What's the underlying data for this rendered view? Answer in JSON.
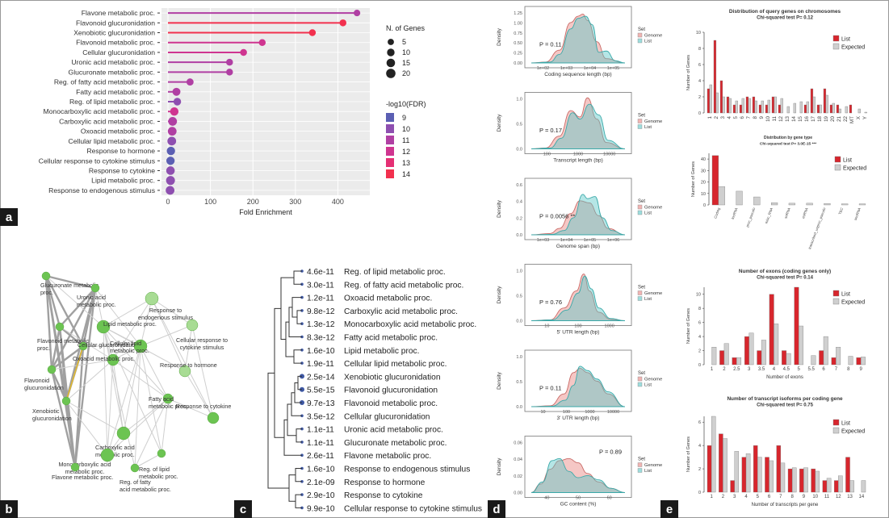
{
  "panel_labels": {
    "a": "a",
    "b": "b",
    "c": "c",
    "d": "d",
    "e": "e"
  },
  "chart_data": [
    {
      "id": "lollipop",
      "type": "scatter",
      "xlabel": "Fold Enrichment",
      "xlim": [
        0,
        460
      ],
      "xticks": [
        0,
        100,
        200,
        300,
        400
      ],
      "legend_size_title": "N. of Genes",
      "legend_sizes": [
        "5",
        "10",
        "15",
        "20"
      ],
      "legend_color_title": "-log10(FDR)",
      "legend_colors": [
        {
          "label": "9",
          "color": "#5b5fb3"
        },
        {
          "label": "10",
          "color": "#8e4fb0"
        },
        {
          "label": "11",
          "color": "#b03fa3"
        },
        {
          "label": "12",
          "color": "#cf3590"
        },
        {
          "label": "13",
          "color": "#e52f74"
        },
        {
          "label": "14",
          "color": "#f2304e"
        }
      ],
      "pathways": [
        {
          "name": "Flavone metabolic proc.",
          "x": 445,
          "genes": 6,
          "fdr": 10.6
        },
        {
          "name": "Flavonoid glucuronidation",
          "x": 412,
          "genes": 7,
          "fdr": 14.3
        },
        {
          "name": "Xenobiotic glucuronidation",
          "x": 340,
          "genes": 7,
          "fdr": 13.6
        },
        {
          "name": "Flavonoid metabolic proc.",
          "x": 222,
          "genes": 7,
          "fdr": 12.0
        },
        {
          "name": "Cellular glucuronidation",
          "x": 178,
          "genes": 7,
          "fdr": 11.5
        },
        {
          "name": "Uronic acid metabolic proc.",
          "x": 145,
          "genes": 7,
          "fdr": 11.0
        },
        {
          "name": "Glucuronate metabolic proc.",
          "x": 145,
          "genes": 7,
          "fdr": 11.0
        },
        {
          "name": "Reg. of fatty acid metabolic proc.",
          "x": 52,
          "genes": 8,
          "fdr": 10.5
        },
        {
          "name": "Fatty acid metabolic proc.",
          "x": 20,
          "genes": 12,
          "fdr": 11.1
        },
        {
          "name": "Reg. of lipid metabolic proc.",
          "x": 22,
          "genes": 10,
          "fdr": 10.4
        },
        {
          "name": "Monocarboxylic acid metabolic proc.",
          "x": 15,
          "genes": 14,
          "fdr": 11.9
        },
        {
          "name": "Carboxylic acid metabolic proc.",
          "x": 11,
          "genes": 16,
          "fdr": 11.0
        },
        {
          "name": "Oxoacid metabolic proc.",
          "x": 10,
          "genes": 16,
          "fdr": 10.9
        },
        {
          "name": "Cellular lipid metabolic proc.",
          "x": 9,
          "genes": 16,
          "fdr": 9.7
        },
        {
          "name": "Response to hormone",
          "x": 7,
          "genes": 14,
          "fdr": 8.7
        },
        {
          "name": "Cellular response to cytokine stimulus",
          "x": 6,
          "genes": 14,
          "fdr": 9.0
        },
        {
          "name": "Response to cytokine",
          "x": 6,
          "genes": 15,
          "fdr": 9.5
        },
        {
          "name": "Lipid metabolic proc.",
          "x": 6,
          "genes": 17,
          "fdr": 9.8
        },
        {
          "name": "Response to endogenous stimulus",
          "x": 5,
          "genes": 16,
          "fdr": 9.8
        }
      ]
    },
    {
      "id": "network",
      "type": "diagram",
      "nodes": [
        {
          "name": "Glucuronate metabolic proc.",
          "size": 5
        },
        {
          "name": "Uronic acid metabolic proc.",
          "size": 5
        },
        {
          "name": "Response to endogenous stimulus",
          "size": 8
        },
        {
          "name": "Flavonoid metabolic proc.",
          "size": 5
        },
        {
          "name": "Lipid metabolic proc.",
          "size": 8
        },
        {
          "name": "Cellular response to cytokine stimulus",
          "size": 7
        },
        {
          "name": "Cellular glucuronidation",
          "size": 5
        },
        {
          "name": "Cellular lipid metabolic proc.",
          "size": 8
        },
        {
          "name": "Flavonoid glucuronidation",
          "size": 5
        },
        {
          "name": "Oxoacid metabolic proc.",
          "size": 7
        },
        {
          "name": "Response to hormone",
          "size": 7
        },
        {
          "name": "Response to cytokine",
          "size": 7
        },
        {
          "name": "Xenobiotic glucuronidation",
          "size": 5
        },
        {
          "name": "Fatty acid metabolic proc.",
          "size": 6
        },
        {
          "name": "Carboxylic acid metabolic proc.",
          "size": 8
        },
        {
          "name": "Monocarboxylic acid metabolic proc.",
          "size": 8
        },
        {
          "name": "Reg. of lipid metabolic proc.",
          "size": 5
        },
        {
          "name": "Flavone metabolic proc.",
          "size": 5
        },
        {
          "name": "Reg. of fatty acid metabolic proc.",
          "size": 5
        }
      ]
    },
    {
      "id": "dendrogram",
      "type": "table",
      "rows": [
        {
          "fdr": "4.6e-11",
          "name": "Reg. of lipid metabolic proc."
        },
        {
          "fdr": "3.0e-11",
          "name": "Reg. of fatty acid metabolic proc."
        },
        {
          "fdr": "1.2e-11",
          "name": "Oxoacid metabolic proc."
        },
        {
          "fdr": "9.8e-12",
          "name": "Carboxylic acid metabolic proc."
        },
        {
          "fdr": "1.3e-12",
          "name": "Monocarboxylic acid metabolic proc."
        },
        {
          "fdr": "8.3e-12",
          "name": "Fatty acid metabolic proc."
        },
        {
          "fdr": "1.6e-10",
          "name": "Lipid metabolic proc."
        },
        {
          "fdr": "1.9e-11",
          "name": "Cellular lipid metabolic proc."
        },
        {
          "fdr": "2.5e-14",
          "name": "Xenobiotic glucuronidation"
        },
        {
          "fdr": "5.5e-15",
          "name": "Flavonoid glucuronidation"
        },
        {
          "fdr": "9.7e-13",
          "name": "Flavonoid metabolic proc."
        },
        {
          "fdr": "3.5e-12",
          "name": "Cellular glucuronidation"
        },
        {
          "fdr": "1.1e-11",
          "name": "Uronic acid metabolic proc."
        },
        {
          "fdr": "1.1e-11",
          "name": "Glucuronate metabolic proc."
        },
        {
          "fdr": "2.6e-11",
          "name": "Flavone metabolic proc."
        },
        {
          "fdr": "1.6e-10",
          "name": "Response to endogenous stimulus"
        },
        {
          "fdr": "2.1e-09",
          "name": "Response to hormone"
        },
        {
          "fdr": "2.9e-10",
          "name": "Response to cytokine"
        },
        {
          "fdr": "9.9e-10",
          "name": "Cellular response to cytokine stimulus"
        }
      ]
    },
    {
      "id": "density",
      "type": "area",
      "ylabel": "Density",
      "legend_title": "Set",
      "legend": [
        "Genome",
        "List"
      ],
      "colors": {
        "Genome": "#e8827f",
        "List": "#5cc7c7"
      },
      "plots": [
        {
          "xlabel": "Coding sequence length (bp)",
          "pvalue": "P = 0.11",
          "yticks": [
            "1.25",
            "1.00",
            "0.75",
            "0.50",
            "0.25",
            "0.00"
          ],
          "xticks": [
            "1e+02",
            "1e+03",
            "1e+04",
            "1e+05"
          ]
        },
        {
          "xlabel": "Transcript length (bp)",
          "pvalue": "P = 0.17",
          "yticks": [
            "1.0",
            "0.5",
            "0.0"
          ],
          "xticks": [
            "100",
            "1000",
            "10000"
          ]
        },
        {
          "xlabel": "Genome span (bp)",
          "pvalue": "P = 0.0056 **",
          "yticks": [
            "0.6",
            "0.4",
            "0.2",
            "0.0"
          ],
          "xticks": [
            "1e+03",
            "1e+04",
            "1e+05",
            "1e+06"
          ]
        },
        {
          "xlabel": "5' UTR length (bp)",
          "pvalue": "P = 0.76",
          "yticks": [
            "1.0",
            "0.5",
            "0.0"
          ],
          "xticks": [
            "10",
            "100",
            "1000"
          ]
        },
        {
          "xlabel": "3' UTR length (bp)",
          "pvalue": "P = 0.11",
          "yticks": [
            "1.0",
            "0.5",
            "0.0"
          ],
          "xticks": [
            "10",
            "100",
            "1000",
            "10000"
          ]
        },
        {
          "xlabel": "GC content (%)",
          "pvalue": "P = 0.89",
          "yticks": [
            "0.06",
            "0.04",
            "0.02",
            "0.00"
          ],
          "xticks": [
            "40",
            "50",
            "60"
          ]
        }
      ]
    },
    {
      "id": "chromosomes",
      "type": "bar",
      "title": "Distribution of query genes on chromosomes",
      "subtitle": "Chi-squared test P= 0.12",
      "ylabel": "Number of Genes",
      "ylim": [
        0,
        10
      ],
      "yticks": [
        0,
        2,
        4,
        6,
        8,
        10
      ],
      "categories": [
        "1",
        "2",
        "3",
        "4",
        "5",
        "6",
        "7",
        "8",
        "9",
        "10",
        "11",
        "12",
        "13",
        "14",
        "15",
        "16",
        "17",
        "18",
        "19",
        "20",
        "21",
        "22",
        "MT",
        "X",
        "Y"
      ],
      "series": [
        {
          "name": "List",
          "color": "#d7262d",
          "values": [
            3,
            9,
            4,
            2,
            1,
            1,
            2,
            2,
            1,
            1,
            2,
            1,
            0,
            0,
            0,
            1,
            3,
            1,
            3,
            1,
            1,
            0,
            1,
            0,
            0
          ]
        },
        {
          "name": "Expected",
          "color": "#cfcfcf",
          "values": [
            3.5,
            2.5,
            2,
            1.8,
            1.5,
            1.8,
            1.8,
            1.5,
            1.5,
            1.6,
            2,
            1.8,
            0.8,
            1.2,
            1.4,
            1.4,
            2,
            1,
            2.2,
            1.2,
            0.5,
            0.8,
            0,
            0.5,
            0.1
          ]
        }
      ]
    },
    {
      "id": "genetype",
      "type": "bar",
      "title": "Distribution by gene type",
      "subtitle": "Chi-squared test P= 3.0E-15 ***",
      "ylabel": "Number of Genes",
      "ylim": [
        0,
        45
      ],
      "yticks": [
        0,
        10,
        20,
        30,
        40
      ],
      "categories": [
        "Coding",
        "lncRNA",
        "proc_pseudo",
        "misc_RNA",
        "snRNA",
        "miRNA",
        "transcribed_unproc_pseudo",
        "TEC",
        "snoRNA"
      ],
      "series": [
        {
          "name": "List",
          "color": "#d7262d",
          "values": [
            43,
            0,
            0,
            0,
            0,
            0,
            0,
            0,
            0
          ]
        },
        {
          "name": "Expected",
          "color": "#cfcfcf",
          "values": [
            16,
            12,
            7,
            2,
            1.5,
            1.5,
            1.2,
            1,
            1
          ]
        }
      ]
    },
    {
      "id": "exons",
      "type": "bar",
      "title": "Number of exons (coding genes only)",
      "subtitle": "Chi-squared test P= 0.14",
      "ylabel": "Number of Genes",
      "xlabel": "Number of exons",
      "ylim": [
        0,
        11
      ],
      "yticks": [
        0,
        2,
        4,
        6,
        8,
        10
      ],
      "categories": [
        "1",
        "2",
        "2.5",
        "3",
        "3.5",
        "4",
        "4.5",
        "5",
        "5.5",
        "6",
        "7",
        "8",
        "9"
      ],
      "series": [
        {
          "name": "List",
          "color": "#d7262d",
          "values": [
            0,
            2,
            1,
            4,
            2,
            10,
            2,
            11,
            0,
            2,
            1,
            0,
            1
          ]
        },
        {
          "name": "Expected",
          "color": "#cfcfcf",
          "values": [
            2.5,
            3,
            1,
            4.5,
            3.5,
            5.8,
            1.6,
            5.5,
            1.3,
            4,
            2.5,
            1.2,
            1.1
          ]
        }
      ]
    },
    {
      "id": "isoforms",
      "type": "bar",
      "title": "Number of transcript isoforms per coding gene",
      "subtitle": "Chi-squared test P= 0.75",
      "ylabel": "Number of Genes",
      "xlabel": "Number of transcripts per gene",
      "ylim": [
        0,
        6.5
      ],
      "yticks": [
        0,
        2,
        4,
        6
      ],
      "categories": [
        "1",
        "2",
        "3",
        "4",
        "5",
        "6",
        "7",
        "8",
        "9",
        "10",
        "11",
        "12",
        "13",
        "14"
      ],
      "series": [
        {
          "name": "List",
          "color": "#d7262d",
          "values": [
            4,
            5,
            1,
            3,
            4,
            3,
            4,
            2,
            2,
            2,
            1,
            1,
            3,
            0
          ]
        },
        {
          "name": "Expected",
          "color": "#cfcfcf",
          "values": [
            6.5,
            4.6,
            3.5,
            3.3,
            3,
            2.7,
            2.5,
            2.1,
            2.1,
            1.8,
            1.2,
            1.4,
            1,
            1
          ]
        }
      ]
    }
  ]
}
